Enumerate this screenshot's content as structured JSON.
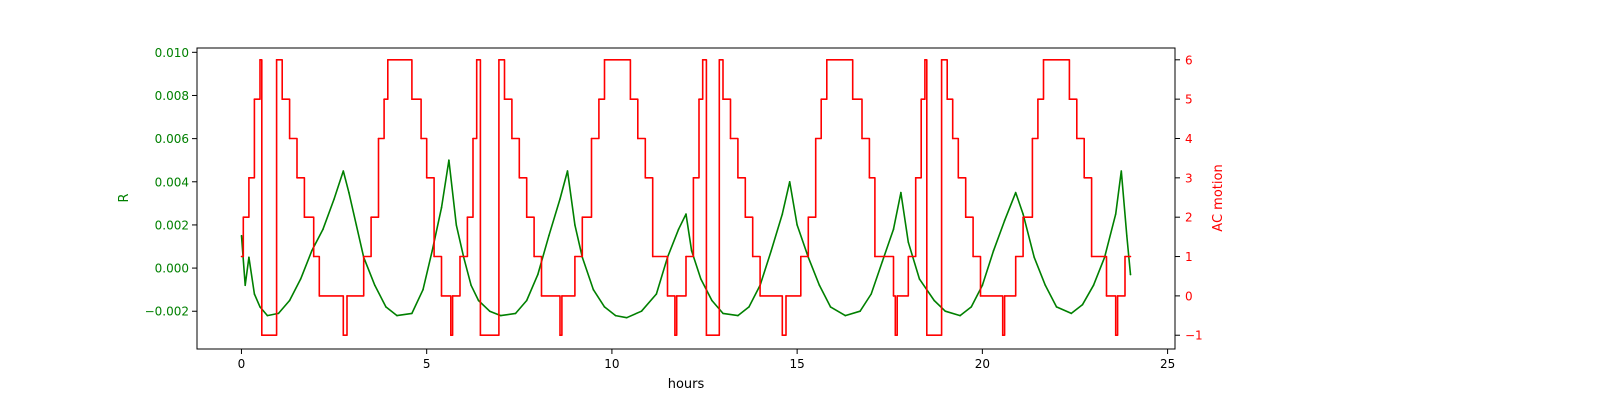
{
  "chart_data": {
    "type": "line",
    "x": {
      "label": "hours",
      "range": [
        -1.2,
        25.2
      ],
      "ticks": [
        0,
        5,
        10,
        15,
        20,
        25
      ],
      "tick_labels": [
        "0",
        "5",
        "10",
        "15",
        "20",
        "25"
      ]
    },
    "y_left": {
      "label": "R",
      "color": "#008000",
      "range": [
        -0.00375,
        0.0102
      ],
      "ticks": [
        -0.002,
        0.0,
        0.002,
        0.004,
        0.006,
        0.008,
        0.01
      ],
      "tick_labels": [
        "−0.002",
        "0.000",
        "0.002",
        "0.004",
        "0.006",
        "0.008",
        "0.010"
      ]
    },
    "y_right": {
      "label": "AC motion",
      "color": "#ff0000",
      "range": [
        -1.35,
        6.3
      ],
      "ticks": [
        -1,
        0,
        1,
        2,
        3,
        4,
        5,
        6
      ],
      "tick_labels": [
        "−1",
        "0",
        "1",
        "2",
        "3",
        "4",
        "5",
        "6"
      ]
    },
    "series": [
      {
        "axis": "left",
        "color": "#008000",
        "style": "noisy line",
        "points": [
          [
            0.0,
            0.0015
          ],
          [
            0.1,
            -0.0008
          ],
          [
            0.2,
            0.0005
          ],
          [
            0.35,
            -0.0012
          ],
          [
            0.5,
            -0.0018
          ],
          [
            0.7,
            -0.0022
          ],
          [
            1.0,
            -0.0021
          ],
          [
            1.3,
            -0.0015
          ],
          [
            1.6,
            -0.0005
          ],
          [
            1.9,
            0.0008
          ],
          [
            2.2,
            0.0018
          ],
          [
            2.5,
            0.0032
          ],
          [
            2.75,
            0.0045
          ],
          [
            2.9,
            0.0035
          ],
          [
            3.1,
            0.002
          ],
          [
            3.3,
            0.0005
          ],
          [
            3.6,
            -0.0008
          ],
          [
            3.9,
            -0.0018
          ],
          [
            4.2,
            -0.0022
          ],
          [
            4.6,
            -0.0021
          ],
          [
            4.9,
            -0.001
          ],
          [
            5.15,
            0.0008
          ],
          [
            5.4,
            0.0028
          ],
          [
            5.6,
            0.005
          ],
          [
            5.8,
            0.002
          ],
          [
            6.0,
            0.0005
          ],
          [
            6.2,
            -0.0008
          ],
          [
            6.4,
            -0.0015
          ],
          [
            6.7,
            -0.002
          ],
          [
            7.0,
            -0.0022
          ],
          [
            7.4,
            -0.0021
          ],
          [
            7.7,
            -0.0015
          ],
          [
            8.0,
            -0.0003
          ],
          [
            8.3,
            0.0015
          ],
          [
            8.6,
            0.0032
          ],
          [
            8.8,
            0.0045
          ],
          [
            9.0,
            0.002
          ],
          [
            9.2,
            0.0005
          ],
          [
            9.5,
            -0.001
          ],
          [
            9.8,
            -0.0018
          ],
          [
            10.1,
            -0.0022
          ],
          [
            10.4,
            -0.0023
          ],
          [
            10.8,
            -0.002
          ],
          [
            11.2,
            -0.0012
          ],
          [
            11.5,
            0.0005
          ],
          [
            11.8,
            0.0018
          ],
          [
            12.0,
            0.0025
          ],
          [
            12.15,
            0.0008
          ],
          [
            12.4,
            -0.0005
          ],
          [
            12.7,
            -0.0015
          ],
          [
            13.0,
            -0.0021
          ],
          [
            13.4,
            -0.0022
          ],
          [
            13.7,
            -0.0018
          ],
          [
            14.0,
            -0.0008
          ],
          [
            14.3,
            0.0008
          ],
          [
            14.6,
            0.0025
          ],
          [
            14.8,
            0.004
          ],
          [
            15.0,
            0.002
          ],
          [
            15.3,
            0.0005
          ],
          [
            15.6,
            -0.0008
          ],
          [
            15.9,
            -0.0018
          ],
          [
            16.3,
            -0.0022
          ],
          [
            16.7,
            -0.002
          ],
          [
            17.0,
            -0.0012
          ],
          [
            17.3,
            0.0003
          ],
          [
            17.6,
            0.0018
          ],
          [
            17.8,
            0.0035
          ],
          [
            18.0,
            0.0012
          ],
          [
            18.3,
            -0.0005
          ],
          [
            18.7,
            -0.0015
          ],
          [
            19.0,
            -0.002
          ],
          [
            19.4,
            -0.0022
          ],
          [
            19.7,
            -0.0018
          ],
          [
            20.0,
            -0.0008
          ],
          [
            20.3,
            0.0008
          ],
          [
            20.6,
            0.0022
          ],
          [
            20.9,
            0.0035
          ],
          [
            21.1,
            0.0025
          ],
          [
            21.4,
            0.0005
          ],
          [
            21.7,
            -0.0008
          ],
          [
            22.0,
            -0.0018
          ],
          [
            22.4,
            -0.0021
          ],
          [
            22.7,
            -0.0017
          ],
          [
            23.0,
            -0.0008
          ],
          [
            23.3,
            0.0005
          ],
          [
            23.6,
            0.0025
          ],
          [
            23.75,
            0.0045
          ],
          [
            23.9,
            0.0015
          ],
          [
            24.0,
            -0.0003
          ]
        ]
      },
      {
        "axis": "right",
        "color": "#ff0000",
        "style": "step line",
        "points": [
          [
            0.0,
            1.0
          ],
          [
            0.05,
            2.0
          ],
          [
            0.2,
            3.0
          ],
          [
            0.35,
            5.0
          ],
          [
            0.5,
            6.0
          ],
          [
            0.55,
            -1.0
          ],
          [
            0.95,
            6.0
          ],
          [
            1.1,
            5.0
          ],
          [
            1.3,
            4.0
          ],
          [
            1.5,
            3.0
          ],
          [
            1.7,
            2.0
          ],
          [
            1.95,
            1.0
          ],
          [
            2.1,
            0.0
          ],
          [
            2.75,
            -1.0
          ],
          [
            2.85,
            0.0
          ],
          [
            3.3,
            1.0
          ],
          [
            3.5,
            2.0
          ],
          [
            3.7,
            4.0
          ],
          [
            3.85,
            5.0
          ],
          [
            3.95,
            6.0
          ],
          [
            4.6,
            5.0
          ],
          [
            4.85,
            4.0
          ],
          [
            5.0,
            3.0
          ],
          [
            5.2,
            1.0
          ],
          [
            5.4,
            0.0
          ],
          [
            5.65,
            -1.0
          ],
          [
            5.7,
            0.0
          ],
          [
            5.9,
            1.0
          ],
          [
            6.1,
            2.0
          ],
          [
            6.25,
            4.0
          ],
          [
            6.35,
            6.0
          ],
          [
            6.45,
            -1.0
          ],
          [
            6.95,
            6.0
          ],
          [
            7.1,
            5.0
          ],
          [
            7.3,
            4.0
          ],
          [
            7.5,
            3.0
          ],
          [
            7.7,
            2.0
          ],
          [
            7.9,
            1.0
          ],
          [
            8.1,
            0.0
          ],
          [
            8.6,
            -1.0
          ],
          [
            8.65,
            0.0
          ],
          [
            9.0,
            1.0
          ],
          [
            9.2,
            2.0
          ],
          [
            9.45,
            4.0
          ],
          [
            9.65,
            5.0
          ],
          [
            9.8,
            6.0
          ],
          [
            10.5,
            5.0
          ],
          [
            10.7,
            4.0
          ],
          [
            10.9,
            3.0
          ],
          [
            11.1,
            1.0
          ],
          [
            11.5,
            0.0
          ],
          [
            11.7,
            -1.0
          ],
          [
            11.75,
            0.0
          ],
          [
            12.0,
            1.0
          ],
          [
            12.2,
            3.0
          ],
          [
            12.35,
            5.0
          ],
          [
            12.45,
            6.0
          ],
          [
            12.55,
            -1.0
          ],
          [
            12.9,
            6.0
          ],
          [
            13.0,
            5.0
          ],
          [
            13.2,
            4.0
          ],
          [
            13.4,
            3.0
          ],
          [
            13.6,
            2.0
          ],
          [
            13.8,
            1.0
          ],
          [
            14.0,
            0.0
          ],
          [
            14.6,
            -1.0
          ],
          [
            14.7,
            0.0
          ],
          [
            15.1,
            1.0
          ],
          [
            15.3,
            2.0
          ],
          [
            15.5,
            4.0
          ],
          [
            15.65,
            5.0
          ],
          [
            15.8,
            6.0
          ],
          [
            16.5,
            5.0
          ],
          [
            16.75,
            4.0
          ],
          [
            16.95,
            3.0
          ],
          [
            17.1,
            1.0
          ],
          [
            17.6,
            0.0
          ],
          [
            17.65,
            -1.0
          ],
          [
            17.7,
            0.0
          ],
          [
            18.0,
            1.0
          ],
          [
            18.2,
            3.0
          ],
          [
            18.35,
            5.0
          ],
          [
            18.45,
            6.0
          ],
          [
            18.5,
            -1.0
          ],
          [
            18.9,
            6.0
          ],
          [
            19.05,
            5.0
          ],
          [
            19.2,
            4.0
          ],
          [
            19.35,
            3.0
          ],
          [
            19.55,
            2.0
          ],
          [
            19.75,
            1.0
          ],
          [
            19.95,
            0.0
          ],
          [
            20.55,
            -1.0
          ],
          [
            20.6,
            0.0
          ],
          [
            20.9,
            1.0
          ],
          [
            21.1,
            2.0
          ],
          [
            21.35,
            4.0
          ],
          [
            21.5,
            5.0
          ],
          [
            21.65,
            6.0
          ],
          [
            22.35,
            5.0
          ],
          [
            22.55,
            4.0
          ],
          [
            22.75,
            3.0
          ],
          [
            22.95,
            1.0
          ],
          [
            23.35,
            0.0
          ],
          [
            23.6,
            -1.0
          ],
          [
            23.65,
            0.0
          ],
          [
            23.85,
            1.0
          ],
          [
            24.0,
            1.0
          ]
        ]
      }
    ],
    "grid": false,
    "legend": "none"
  }
}
